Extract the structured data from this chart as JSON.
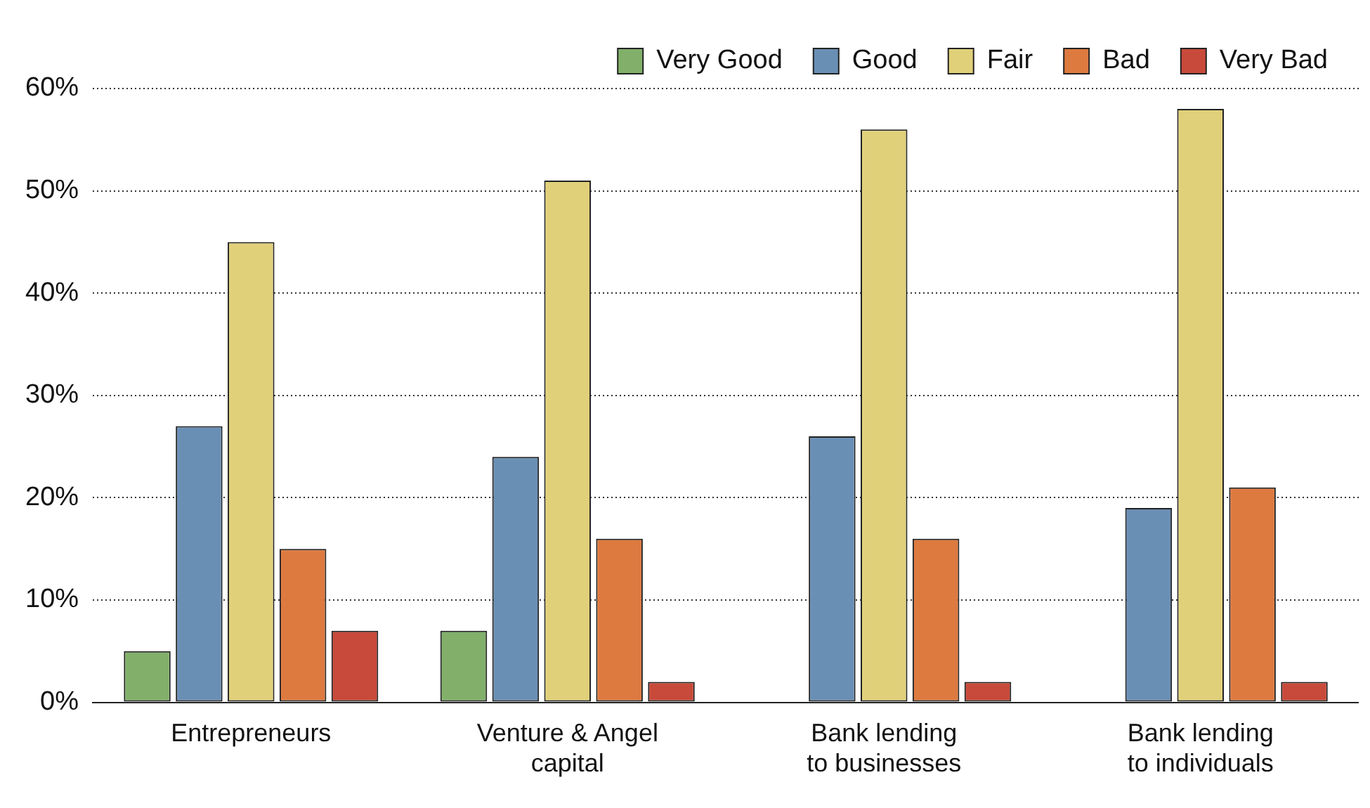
{
  "chart_data": {
    "type": "bar",
    "categories": [
      "Entrepreneurs",
      "Venture & Angel capital",
      "Bank lending to businesses",
      "Bank lending to individuals"
    ],
    "series": [
      {
        "name": "Very Good",
        "color": "#82b06b",
        "values": [
          5,
          7,
          0,
          0
        ]
      },
      {
        "name": "Good",
        "color": "#6a8fb5",
        "values": [
          27,
          24,
          26,
          19
        ]
      },
      {
        "name": "Fair",
        "color": "#e0d07a",
        "values": [
          45,
          51,
          56,
          58
        ]
      },
      {
        "name": "Bad",
        "color": "#dd7a40",
        "values": [
          15,
          16,
          16,
          21
        ]
      },
      {
        "name": "Very Bad",
        "color": "#c84a3a",
        "values": [
          7,
          2,
          2,
          2
        ]
      }
    ],
    "ylim": [
      0,
      60
    ],
    "yticks": [
      {
        "value": 0,
        "label": "0%"
      },
      {
        "value": 10,
        "label": "10%"
      },
      {
        "value": 20,
        "label": "20%"
      },
      {
        "value": 30,
        "label": "30%"
      },
      {
        "value": 40,
        "label": "40%"
      },
      {
        "value": 50,
        "label": "50%"
      },
      {
        "value": 60,
        "label": "60%"
      }
    ],
    "grid": "y",
    "legend": "top right"
  }
}
